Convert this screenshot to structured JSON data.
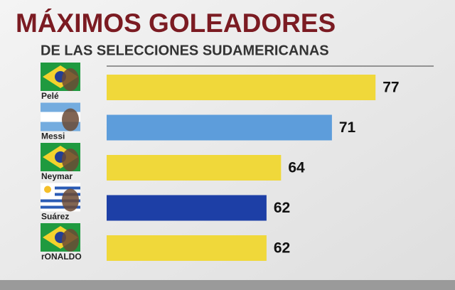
{
  "chart_data": {
    "type": "hbar",
    "title": "MÁXIMOS GOLEADORES",
    "subtitle": "DE LAS SELECCIONES SUDAMERICANAS",
    "categories": [
      "Pelé",
      "Messi",
      "Neymar",
      "Suárez",
      "rONALDO"
    ],
    "values": [
      77,
      71,
      64,
      62,
      62
    ],
    "colors": [
      "#f0d83a",
      "#5d9ddb",
      "#f0d83a",
      "#1d3fa6",
      "#f0d83a"
    ],
    "xlim": [
      40,
      85
    ]
  }
}
